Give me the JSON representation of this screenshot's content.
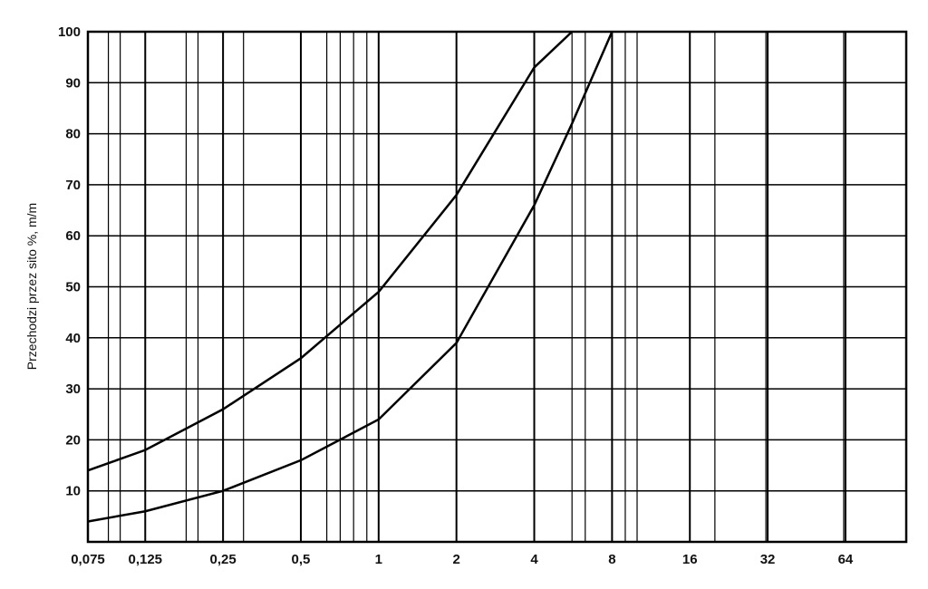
{
  "chart_data": {
    "type": "line",
    "y_label": "Przechodzi przez sito %, m/m",
    "log_x": true,
    "xlim": [
      0.075,
      110
    ],
    "xticks": [
      {
        "value": 0.075,
        "label": "0,075"
      },
      {
        "value": 0.125,
        "label": "0,125"
      },
      {
        "value": 0.25,
        "label": "0,25"
      },
      {
        "value": 0.5,
        "label": "0,5"
      },
      1,
      2,
      4,
      8,
      16,
      32,
      64
    ],
    "xminor": [
      0.09,
      0.1,
      0.18,
      0.2,
      0.3,
      0.63,
      0.71,
      0.8,
      0.9,
      5.6,
      6.3,
      9,
      10,
      20,
      31.5,
      63
    ],
    "ylim": [
      0,
      100
    ],
    "yticks": [
      10,
      20,
      30,
      40,
      50,
      60,
      70,
      80,
      90,
      100
    ],
    "grid": true,
    "series": [
      {
        "color": "#000000",
        "x": [
          0.075,
          0.125,
          0.25,
          0.5,
          1,
          2,
          4,
          5.6
        ],
        "values": [
          14,
          18,
          26,
          36,
          49,
          68,
          93,
          100
        ]
      },
      {
        "color": "#000000",
        "x": [
          0.075,
          0.125,
          0.25,
          0.5,
          1,
          2,
          4,
          5.6,
          8
        ],
        "values": [
          4,
          6,
          10,
          16,
          24,
          39,
          66,
          82,
          100
        ]
      }
    ]
  }
}
